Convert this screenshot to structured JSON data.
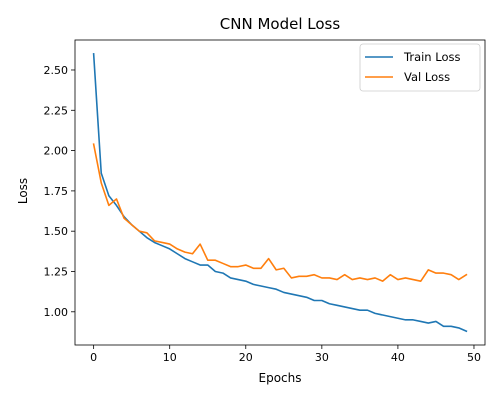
{
  "chart_data": {
    "type": "line",
    "title": "CNN Model Loss",
    "xlabel": "Epochs",
    "ylabel": "Loss",
    "xlim": [
      -2.45,
      51.45
    ],
    "ylim": [
      0.794,
      2.686
    ],
    "x_ticks": [
      0,
      10,
      20,
      30,
      40,
      50
    ],
    "x_tick_labels": [
      "0",
      "10",
      "20",
      "30",
      "40",
      "50"
    ],
    "y_ticks": [
      1.0,
      1.25,
      1.5,
      1.75,
      2.0,
      2.25,
      2.5
    ],
    "y_tick_labels": [
      "1.00",
      "1.25",
      "1.50",
      "1.75",
      "2.00",
      "2.25",
      "2.50"
    ],
    "grid": false,
    "legend_position": "top-right",
    "x": [
      0,
      1,
      2,
      3,
      4,
      5,
      6,
      7,
      8,
      9,
      10,
      11,
      12,
      13,
      14,
      15,
      16,
      17,
      18,
      19,
      20,
      21,
      22,
      23,
      24,
      25,
      26,
      27,
      28,
      29,
      30,
      31,
      32,
      33,
      34,
      35,
      36,
      37,
      38,
      39,
      40,
      41,
      42,
      43,
      44,
      45,
      46,
      47,
      48,
      49
    ],
    "series": [
      {
        "name": "Train Loss",
        "color": "#1f77b4",
        "values": [
          2.6,
          1.86,
          1.72,
          1.66,
          1.59,
          1.54,
          1.5,
          1.46,
          1.43,
          1.41,
          1.39,
          1.36,
          1.33,
          1.31,
          1.29,
          1.29,
          1.25,
          1.24,
          1.21,
          1.2,
          1.19,
          1.17,
          1.16,
          1.15,
          1.14,
          1.12,
          1.11,
          1.1,
          1.09,
          1.07,
          1.07,
          1.05,
          1.04,
          1.03,
          1.02,
          1.01,
          1.01,
          0.99,
          0.98,
          0.97,
          0.96,
          0.95,
          0.95,
          0.94,
          0.93,
          0.94,
          0.91,
          0.91,
          0.9,
          0.88
        ]
      },
      {
        "name": "Val Loss",
        "color": "#ff7f0e",
        "values": [
          2.04,
          1.8,
          1.66,
          1.7,
          1.58,
          1.54,
          1.5,
          1.49,
          1.44,
          1.43,
          1.42,
          1.39,
          1.37,
          1.36,
          1.42,
          1.32,
          1.32,
          1.3,
          1.28,
          1.28,
          1.29,
          1.27,
          1.27,
          1.33,
          1.26,
          1.27,
          1.21,
          1.22,
          1.22,
          1.23,
          1.21,
          1.21,
          1.2,
          1.23,
          1.2,
          1.21,
          1.2,
          1.21,
          1.19,
          1.23,
          1.2,
          1.21,
          1.2,
          1.19,
          1.26,
          1.24,
          1.24,
          1.23,
          1.2,
          1.23
        ]
      }
    ]
  }
}
